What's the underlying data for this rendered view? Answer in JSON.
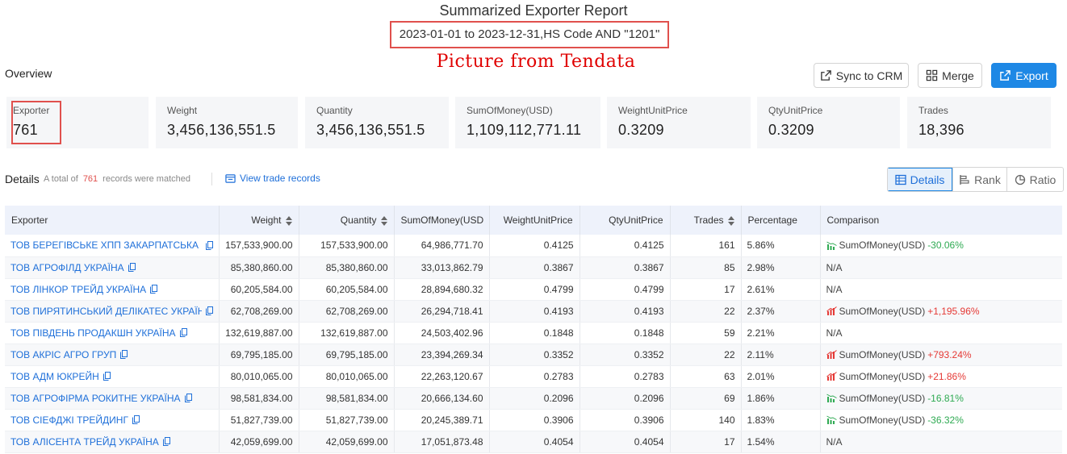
{
  "header": {
    "title": "Summarized Exporter Report",
    "subtitle": "2023-01-01 to 2023-12-31,HS Code AND \"1201\"",
    "watermark": "Picture from Tendata"
  },
  "overview": {
    "label": "Overview",
    "buttons": {
      "sync": "Sync to CRM",
      "merge": "Merge",
      "export": "Export"
    },
    "cards": [
      {
        "label": "Exporter",
        "value": "761"
      },
      {
        "label": "Weight",
        "value": "3,456,136,551.5"
      },
      {
        "label": "Quantity",
        "value": "3,456,136,551.5"
      },
      {
        "label": "SumOfMoney(USD)",
        "value": "1,109,112,771.11"
      },
      {
        "label": "WeightUnitPrice",
        "value": "0.3209"
      },
      {
        "label": "QtyUnitPrice",
        "value": "0.3209"
      },
      {
        "label": "Trades",
        "value": "18,396"
      }
    ]
  },
  "details": {
    "label": "Details",
    "total_prefix": "A total of",
    "total_count": "761",
    "total_suffix": "records were matched",
    "view_link": "View trade records",
    "views": {
      "details": "Details",
      "rank": "Rank",
      "ratio": "Ratio"
    }
  },
  "table": {
    "columns": [
      "Exporter",
      "Weight",
      "Quantity",
      "SumOfMoney(USD",
      "WeightUnitPrice",
      "QtyUnitPrice",
      "Trades",
      "Percentage",
      "Comparison"
    ],
    "rows": [
      {
        "exporter": "ТОВ БЕРЕГІВСЬКЕ ХПП ЗАКАРПАТСЬКА С",
        "weight": "157,533,900.00",
        "quantity": "157,533,900.00",
        "money": "64,986,771.70",
        "wup": "0.4125",
        "qup": "0.4125",
        "trades": "161",
        "pct": "5.86%",
        "cmp_label": "SumOfMoney(USD)",
        "cmp_change": "-30.06%",
        "cmp_dir": "down"
      },
      {
        "exporter": "ТОВ АГРОФІЛД УКРАЇНА",
        "weight": "85,380,860.00",
        "quantity": "85,380,860.00",
        "money": "33,013,862.79",
        "wup": "0.3867",
        "qup": "0.3867",
        "trades": "85",
        "pct": "2.98%",
        "cmp_label": "N/A",
        "cmp_change": "",
        "cmp_dir": "none"
      },
      {
        "exporter": "ТОВ ЛІНКОР ТРЕЙД УКРАЇНА",
        "weight": "60,205,584.00",
        "quantity": "60,205,584.00",
        "money": "28,894,680.32",
        "wup": "0.4799",
        "qup": "0.4799",
        "trades": "17",
        "pct": "2.61%",
        "cmp_label": "N/A",
        "cmp_change": "",
        "cmp_dir": "none"
      },
      {
        "exporter": "ТОВ ПИРЯТИНСЬКИЙ ДЕЛІКАТЕС УКРАЇН",
        "weight": "62,708,269.00",
        "quantity": "62,708,269.00",
        "money": "26,294,718.41",
        "wup": "0.4193",
        "qup": "0.4193",
        "trades": "22",
        "pct": "2.37%",
        "cmp_label": "SumOfMoney(USD)",
        "cmp_change": "+1,195.96%",
        "cmp_dir": "up"
      },
      {
        "exporter": "ТОВ ПІВДЕНЬ ПРОДАКШН УКРАЇНА",
        "weight": "132,619,887.00",
        "quantity": "132,619,887.00",
        "money": "24,503,402.96",
        "wup": "0.1848",
        "qup": "0.1848",
        "trades": "59",
        "pct": "2.21%",
        "cmp_label": "N/A",
        "cmp_change": "",
        "cmp_dir": "none"
      },
      {
        "exporter": "ТОВ АКРІС АГРО ГРУП",
        "weight": "69,795,185.00",
        "quantity": "69,795,185.00",
        "money": "23,394,269.34",
        "wup": "0.3352",
        "qup": "0.3352",
        "trades": "22",
        "pct": "2.11%",
        "cmp_label": "SumOfMoney(USD)",
        "cmp_change": "+793.24%",
        "cmp_dir": "up"
      },
      {
        "exporter": "ТОВ АДМ ЮКРЕЙН",
        "weight": "80,010,065.00",
        "quantity": "80,010,065.00",
        "money": "22,263,120.67",
        "wup": "0.2783",
        "qup": "0.2783",
        "trades": "63",
        "pct": "2.01%",
        "cmp_label": "SumOfMoney(USD)",
        "cmp_change": "+21.86%",
        "cmp_dir": "up"
      },
      {
        "exporter": "ТОВ АГРОФІРМА РОКИТНЕ УКРАЇНА",
        "weight": "98,581,834.00",
        "quantity": "98,581,834.00",
        "money": "20,666,134.60",
        "wup": "0.2096",
        "qup": "0.2096",
        "trades": "69",
        "pct": "1.86%",
        "cmp_label": "SumOfMoney(USD)",
        "cmp_change": "-16.81%",
        "cmp_dir": "down"
      },
      {
        "exporter": "ТОВ СІЕФДЖІ ТРЕЙДИНГ",
        "weight": "51,827,739.00",
        "quantity": "51,827,739.00",
        "money": "20,245,389.71",
        "wup": "0.3906",
        "qup": "0.3906",
        "trades": "140",
        "pct": "1.83%",
        "cmp_label": "SumOfMoney(USD)",
        "cmp_change": "-36.32%",
        "cmp_dir": "down"
      },
      {
        "exporter": "ТОВ АЛІСЕНТА ТРЕЙД УКРАЇНА",
        "weight": "42,059,699.00",
        "quantity": "42,059,699.00",
        "money": "17,051,873.48",
        "wup": "0.4054",
        "qup": "0.4054",
        "trades": "17",
        "pct": "1.54%",
        "cmp_label": "N/A",
        "cmp_change": "",
        "cmp_dir": "none"
      }
    ]
  },
  "colors": {
    "accent": "#1e88e5",
    "highlight": "#e0504d",
    "increase": "#e53935",
    "decrease": "#2eaa52"
  }
}
